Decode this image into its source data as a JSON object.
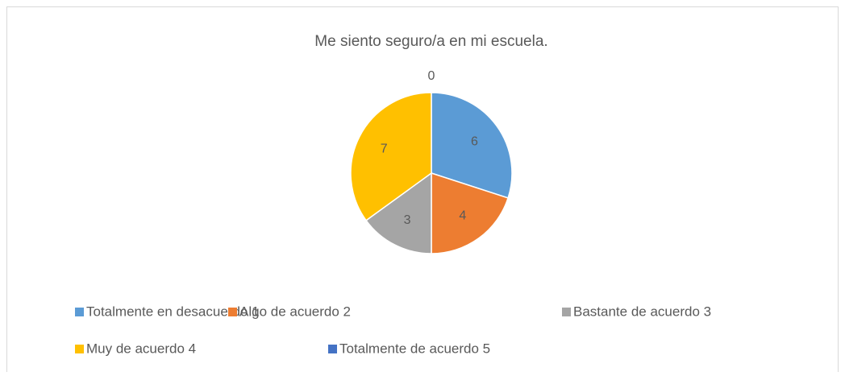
{
  "chart_data": {
    "type": "pie",
    "title": "Me siento seguro/a en mi escuela.",
    "categories": [
      "Totalmente en desacuerdo 1",
      "Algo de acuerdo 2",
      "Bastante de acuerdo 3",
      "Muy de acuerdo 4",
      "Totalmente de acuerdo 5"
    ],
    "values": [
      6,
      4,
      3,
      7,
      0
    ],
    "colors": [
      "#5b9bd5",
      "#ed7d31",
      "#a5a5a5",
      "#ffc000",
      "#4472c4"
    ],
    "legend": "bottom"
  }
}
